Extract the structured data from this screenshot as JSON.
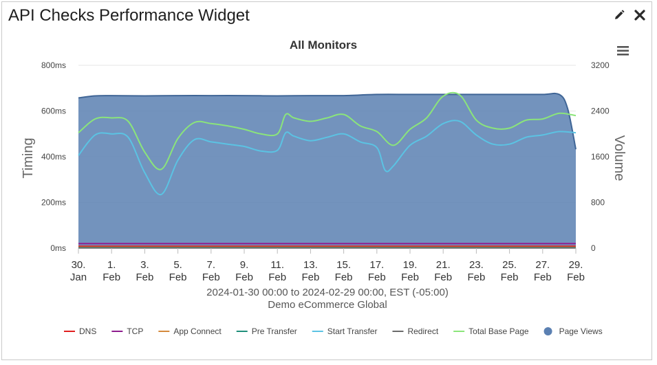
{
  "widget": {
    "title": "API Checks Performance Widget",
    "edit_icon": "pencil-icon",
    "close_icon": "close-icon",
    "menu_icon": "hamburger-menu-icon"
  },
  "chart_data": {
    "type": "line",
    "title": "All Monitors",
    "ylabel": "Timing",
    "y2label": "Volume",
    "ylim": [
      0,
      800
    ],
    "y2lim": [
      0,
      3200
    ],
    "y_ticks": [
      "0ms",
      "200ms",
      "400ms",
      "600ms",
      "800ms"
    ],
    "y2_ticks": [
      "0",
      "800",
      "1600",
      "2400",
      "3200"
    ],
    "x_ticks": [
      {
        "day": 0,
        "l1": "30.",
        "l2": "Jan"
      },
      {
        "day": 2,
        "l1": "1.",
        "l2": "Feb"
      },
      {
        "day": 4,
        "l1": "3.",
        "l2": "Feb"
      },
      {
        "day": 6,
        "l1": "5.",
        "l2": "Feb"
      },
      {
        "day": 8,
        "l1": "7.",
        "l2": "Feb"
      },
      {
        "day": 10,
        "l1": "9.",
        "l2": "Feb"
      },
      {
        "day": 12,
        "l1": "11.",
        "l2": "Feb"
      },
      {
        "day": 14,
        "l1": "13.",
        "l2": "Feb"
      },
      {
        "day": 16,
        "l1": "15.",
        "l2": "Feb"
      },
      {
        "day": 18,
        "l1": "17.",
        "l2": "Feb"
      },
      {
        "day": 20,
        "l1": "19.",
        "l2": "Feb"
      },
      {
        "day": 22,
        "l1": "21.",
        "l2": "Feb"
      },
      {
        "day": 24,
        "l1": "23.",
        "l2": "Feb"
      },
      {
        "day": 26,
        "l1": "25.",
        "l2": "Feb"
      },
      {
        "day": 28,
        "l1": "27.",
        "l2": "Feb"
      },
      {
        "day": 30,
        "l1": "29.",
        "l2": "Feb"
      }
    ],
    "x_range_days": [
      0,
      30
    ],
    "date_range": "2024-01-30 00:00 to 2024-02-29 00:00, EST (-05:00)",
    "location": "Demo eCommerce Global",
    "grid": true,
    "legend_position": "bottom",
    "series": [
      {
        "name": "DNS",
        "color": "#e01e1e",
        "axis": "left",
        "kind": "line",
        "x": [
          0,
          5,
          10,
          15,
          20,
          25,
          30
        ],
        "values": [
          8,
          8,
          8,
          8,
          8,
          8,
          8
        ]
      },
      {
        "name": "TCP",
        "color": "#8e1c8e",
        "axis": "left",
        "kind": "line",
        "x": [
          0,
          5,
          10,
          15,
          20,
          25,
          30
        ],
        "values": [
          20,
          20,
          20,
          20,
          20,
          20,
          20
        ]
      },
      {
        "name": "App Connect",
        "color": "#d4893c",
        "axis": "left",
        "kind": "line",
        "x": [
          0,
          5,
          10,
          15,
          20,
          25,
          30
        ],
        "values": [
          4,
          4,
          4,
          4,
          4,
          4,
          4
        ]
      },
      {
        "name": "Pre Transfer",
        "color": "#1e8e7a",
        "axis": "left",
        "kind": "line",
        "x": [
          0,
          5,
          10,
          15,
          20,
          25,
          30
        ],
        "values": [
          2,
          2,
          2,
          2,
          2,
          2,
          2
        ]
      },
      {
        "name": "Start Transfer",
        "color": "#5bc3e3",
        "axis": "left",
        "kind": "line",
        "x": [
          0,
          1,
          2,
          3,
          4,
          5,
          6,
          7,
          8,
          9,
          10,
          11,
          12,
          12.5,
          13,
          14,
          15,
          16,
          17,
          18,
          18.5,
          19,
          20,
          21,
          22,
          23,
          24,
          25,
          26,
          27,
          28,
          29,
          30
        ],
        "values": [
          405,
          495,
          500,
          485,
          330,
          235,
          385,
          475,
          465,
          455,
          445,
          425,
          428,
          505,
          490,
          470,
          485,
          500,
          465,
          440,
          340,
          360,
          450,
          490,
          545,
          555,
          495,
          455,
          455,
          485,
          495,
          510,
          505
        ]
      },
      {
        "name": "Redirect",
        "color": "#6a6a6a",
        "axis": "left",
        "kind": "line",
        "x": [
          0,
          5,
          10,
          15,
          20,
          25,
          30
        ],
        "values": [
          1,
          1,
          1,
          1,
          1,
          1,
          1
        ]
      },
      {
        "name": "Total Base Page",
        "color": "#8be57a",
        "axis": "left",
        "kind": "line",
        "x": [
          0,
          1,
          2,
          3,
          4,
          5,
          6,
          7,
          8,
          9,
          10,
          11,
          12,
          12.5,
          13,
          14,
          15,
          16,
          17,
          18,
          19,
          20,
          21,
          22,
          23,
          24,
          25,
          26,
          27,
          28,
          29,
          30
        ],
        "values": [
          505,
          565,
          570,
          555,
          420,
          345,
          480,
          550,
          545,
          535,
          520,
          500,
          500,
          585,
          570,
          555,
          570,
          585,
          535,
          510,
          450,
          520,
          570,
          665,
          670,
          560,
          525,
          525,
          560,
          565,
          590,
          580
        ]
      },
      {
        "name": "Page Views",
        "color": "#5b80b2",
        "axis": "right",
        "kind": "area",
        "x": [
          0,
          1,
          2,
          4,
          6,
          8,
          10,
          12,
          14,
          16,
          18,
          20,
          22,
          24,
          26,
          28,
          29,
          29.5,
          30
        ],
        "values": [
          2630,
          2665,
          2670,
          2665,
          2670,
          2670,
          2670,
          2665,
          2670,
          2670,
          2690,
          2690,
          2690,
          2690,
          2690,
          2690,
          2690,
          2450,
          1730
        ]
      }
    ]
  }
}
